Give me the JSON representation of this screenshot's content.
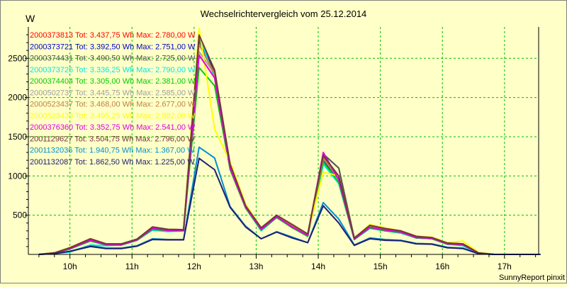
{
  "chart_data": {
    "type": "line",
    "title": "Wechselrichtervergleich vom 25.12.2014",
    "ylabel": "W",
    "xlabel": "",
    "footer": "SunnyReport pinxit",
    "ylim": [
      0,
      2900
    ],
    "xlim": [
      9.33,
      17.55
    ],
    "grid": true,
    "legend_position": "top-left",
    "x_ticks": [
      {
        "value": 10,
        "label": "10h"
      },
      {
        "value": 11,
        "label": "11h"
      },
      {
        "value": 12,
        "label": "12h"
      },
      {
        "value": 13,
        "label": "13h"
      },
      {
        "value": 14,
        "label": "14h"
      },
      {
        "value": 15,
        "label": "15h"
      },
      {
        "value": 16,
        "label": "16h"
      },
      {
        "value": 17,
        "label": "17h"
      }
    ],
    "y_ticks": [
      {
        "value": 500,
        "label": "500"
      },
      {
        "value": 1000,
        "label": "1000"
      },
      {
        "value": 1500,
        "label": "1500"
      },
      {
        "value": 2000,
        "label": "2000"
      },
      {
        "value": 2500,
        "label": "2500"
      }
    ],
    "x": [
      9.5,
      9.75,
      10.0,
      10.33,
      10.58,
      10.83,
      11.08,
      11.33,
      11.58,
      11.83,
      12.08,
      12.33,
      12.58,
      12.83,
      13.08,
      13.33,
      13.58,
      13.83,
      14.08,
      14.33,
      14.58,
      14.83,
      15.08,
      15.33,
      15.58,
      15.83,
      16.08,
      16.33,
      16.58,
      16.83,
      17.08,
      17.33,
      17.58
    ],
    "series": [
      {
        "name": "2000373813 Tot: 3.437,75 Wh Max: 2.780,00 W",
        "color": "#FF0000",
        "values": [
          0,
          20,
          80,
          190,
          130,
          130,
          190,
          340,
          310,
          310,
          2780,
          2300,
          1130,
          610,
          330,
          490,
          370,
          250,
          1250,
          980,
          200,
          360,
          320,
          290,
          220,
          210,
          140,
          130,
          20,
          0,
          0,
          0,
          0
        ]
      },
      {
        "name": "2000373721 Tot: 3.392,50 Wh Max: 2.751,00 W",
        "color": "#0000CC",
        "values": [
          0,
          15,
          70,
          180,
          120,
          120,
          180,
          330,
          310,
          310,
          2751,
          2350,
          1110,
          600,
          310,
          480,
          350,
          240,
          1200,
          960,
          200,
          340,
          300,
          280,
          210,
          200,
          130,
          120,
          15,
          0,
          0,
          0,
          0
        ]
      },
      {
        "name": "2000374431 Tot: 3.490,50 Wh Max: 2.725,00 W",
        "color": "#505050",
        "values": [
          0,
          20,
          85,
          200,
          135,
          135,
          195,
          350,
          320,
          315,
          2725,
          2300,
          1140,
          620,
          340,
          500,
          380,
          260,
          1280,
          1100,
          210,
          370,
          330,
          300,
          230,
          215,
          145,
          135,
          20,
          0,
          0,
          0,
          0
        ]
      },
      {
        "name": "2000373726 Tot: 3.336,25 Wh Max: 2.790,00 W",
        "color": "#00E8E8",
        "values": [
          0,
          10,
          30,
          120,
          110,
          120,
          180,
          310,
          290,
          300,
          2790,
          2250,
          1100,
          590,
          300,
          470,
          340,
          230,
          1150,
          900,
          190,
          330,
          300,
          270,
          210,
          200,
          130,
          110,
          10,
          0,
          0,
          0,
          0
        ]
      },
      {
        "name": "2000374404 Tot: 3.305,00 Wh Max: 2.381,00 W",
        "color": "#00CC00",
        "values": [
          0,
          15,
          70,
          170,
          120,
          120,
          180,
          320,
          300,
          300,
          2381,
          2150,
          1080,
          590,
          310,
          470,
          340,
          230,
          1180,
          920,
          190,
          340,
          300,
          280,
          210,
          200,
          130,
          120,
          15,
          0,
          0,
          0,
          0
        ]
      },
      {
        "name": "2000502737 Tot: 3.445,75 Wh Max: 2.585,00 W",
        "color": "#A0A0A0",
        "values": [
          0,
          20,
          80,
          190,
          130,
          130,
          190,
          340,
          310,
          310,
          2585,
          2300,
          1120,
          610,
          320,
          490,
          360,
          250,
          1220,
          960,
          200,
          350,
          320,
          290,
          220,
          210,
          140,
          130,
          20,
          0,
          0,
          0,
          0
        ]
      },
      {
        "name": "2000523437 Tot: 3.468,00 Wh Max: 2.677,00 W",
        "color": "#C08040",
        "values": [
          0,
          20,
          85,
          195,
          130,
          130,
          190,
          345,
          315,
          310,
          2677,
          2300,
          1130,
          615,
          330,
          495,
          370,
          255,
          1230,
          970,
          205,
          355,
          325,
          295,
          225,
          210,
          140,
          130,
          20,
          0,
          0,
          0,
          0
        ]
      },
      {
        "name": "2000523438 Tot: 3.495,25 Wh Max: 2.882,00 W",
        "color": "#FFFF00",
        "values": [
          0,
          20,
          90,
          200,
          135,
          135,
          195,
          350,
          320,
          315,
          2882,
          1600,
          1180,
          640,
          340,
          500,
          380,
          260,
          1050,
          1000,
          210,
          380,
          340,
          300,
          230,
          220,
          150,
          170,
          25,
          0,
          0,
          0,
          0
        ]
      },
      {
        "name": "2000376360 Tot: 3.352,75 Wh Max: 2.541,00 W",
        "color": "#E000E0",
        "values": [
          0,
          15,
          75,
          180,
          125,
          125,
          185,
          330,
          305,
          305,
          2541,
          2250,
          1100,
          600,
          320,
          480,
          350,
          240,
          1300,
          950,
          195,
          345,
          310,
          285,
          215,
          205,
          135,
          125,
          15,
          0,
          0,
          0,
          0
        ]
      },
      {
        "name": "2001129627 Tot: 3.504,75 Wh Max: 2.796,00 W",
        "color": "#703838",
        "values": [
          0,
          20,
          85,
          200,
          135,
          135,
          195,
          350,
          320,
          315,
          2796,
          2350,
          1150,
          620,
          340,
          500,
          380,
          260,
          1260,
          1000,
          210,
          370,
          330,
          300,
          230,
          215,
          145,
          135,
          20,
          0,
          0,
          0,
          0
        ]
      },
      {
        "name": "2001132036 Tot: 1.940,75 Wh Max: 1.367,00 W",
        "color": "#0090D0",
        "values": [
          0,
          10,
          40,
          110,
          80,
          80,
          110,
          200,
          190,
          190,
          1367,
          1230,
          610,
          360,
          200,
          290,
          220,
          150,
          660,
          450,
          120,
          210,
          190,
          180,
          140,
          135,
          90,
          80,
          10,
          0,
          0,
          0,
          0
        ]
      },
      {
        "name": "2001132087 Tot: 1.862,50 Wh Max: 1.225,00 W",
        "color": "#202070",
        "values": [
          0,
          10,
          40,
          100,
          75,
          75,
          105,
          190,
          185,
          185,
          1225,
          1080,
          600,
          350,
          200,
          285,
          210,
          150,
          620,
          400,
          115,
          200,
          180,
          175,
          135,
          130,
          85,
          75,
          10,
          0,
          0,
          0,
          0
        ]
      }
    ]
  }
}
